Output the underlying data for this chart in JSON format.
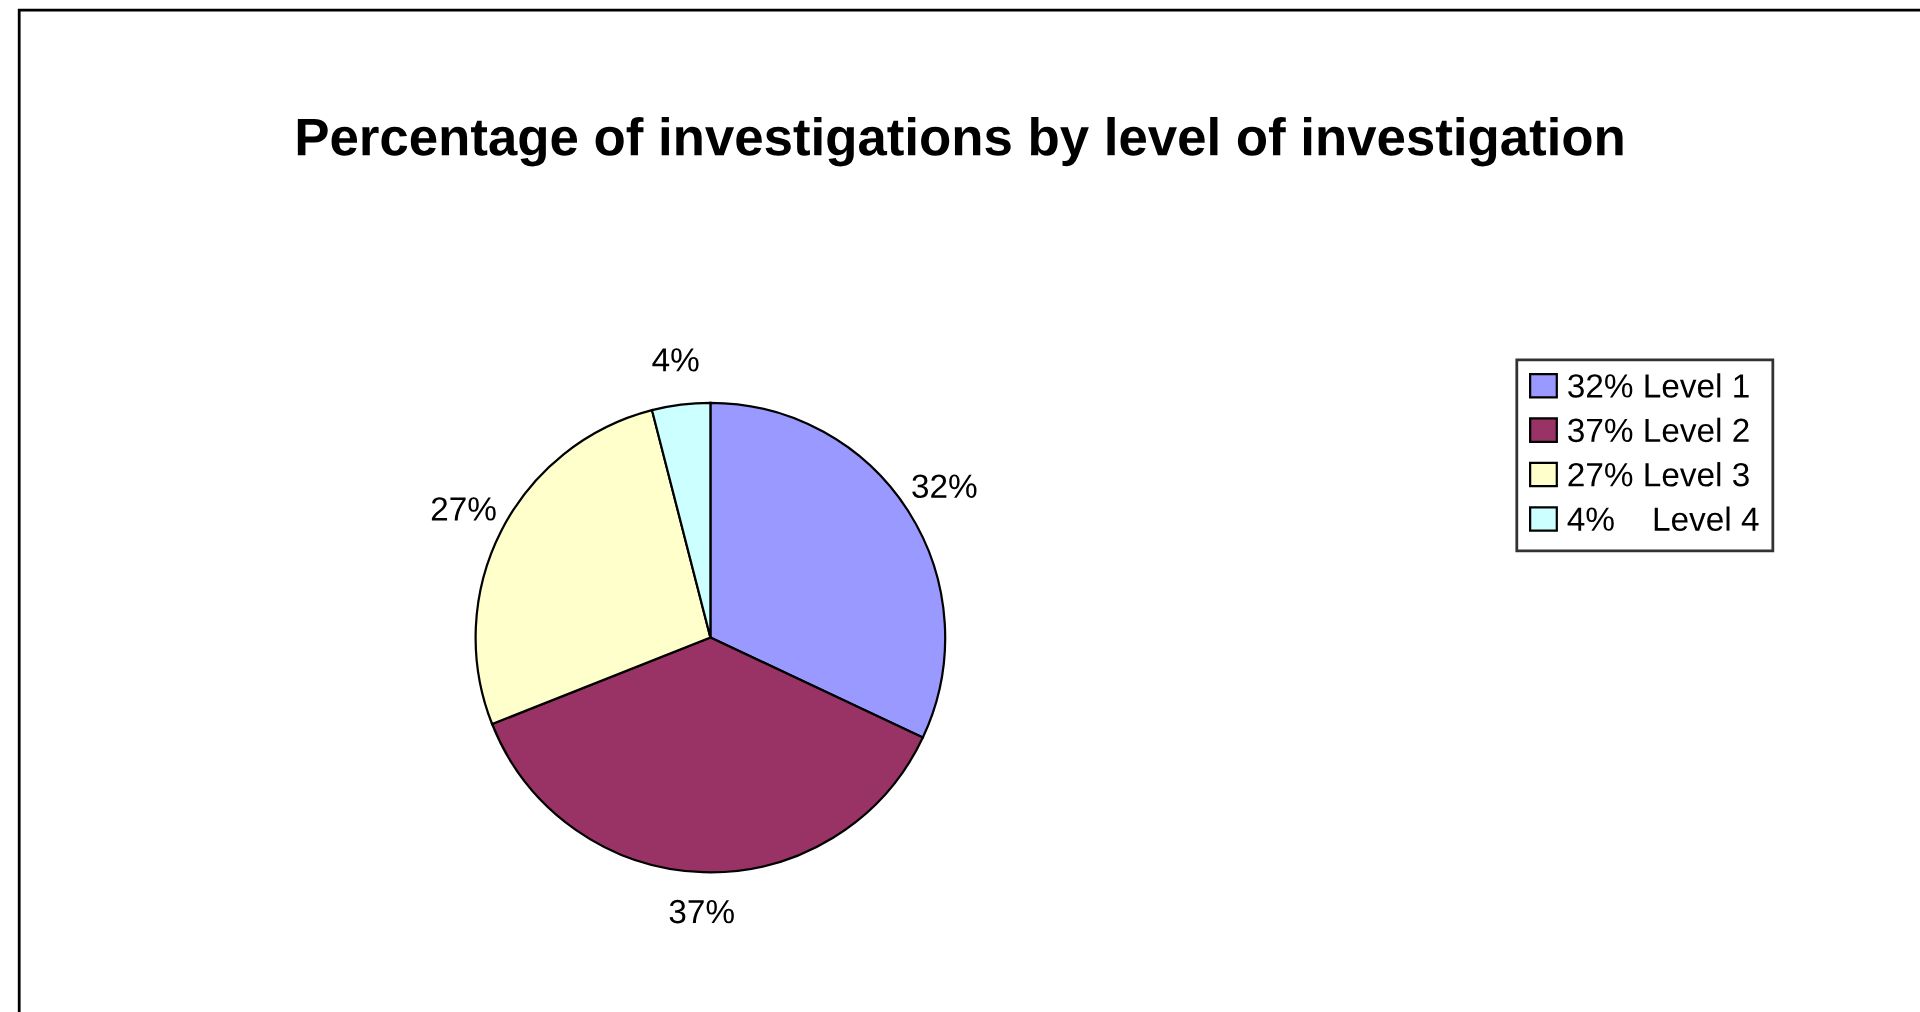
{
  "chart_data": {
    "type": "pie",
    "title": "Percentage of investigations by level of investigation",
    "categories": [
      "32% Level 1",
      "37% Level 2",
      "27% Level 3",
      "4%    Level 4"
    ],
    "values": [
      32,
      37,
      27,
      4
    ],
    "colors": [
      "#9999ff",
      "#993366",
      "#ffffcc",
      "#ccffff"
    ],
    "value_labels": [
      "32%",
      "37%",
      "27%",
      "4%"
    ],
    "legend": "right"
  }
}
